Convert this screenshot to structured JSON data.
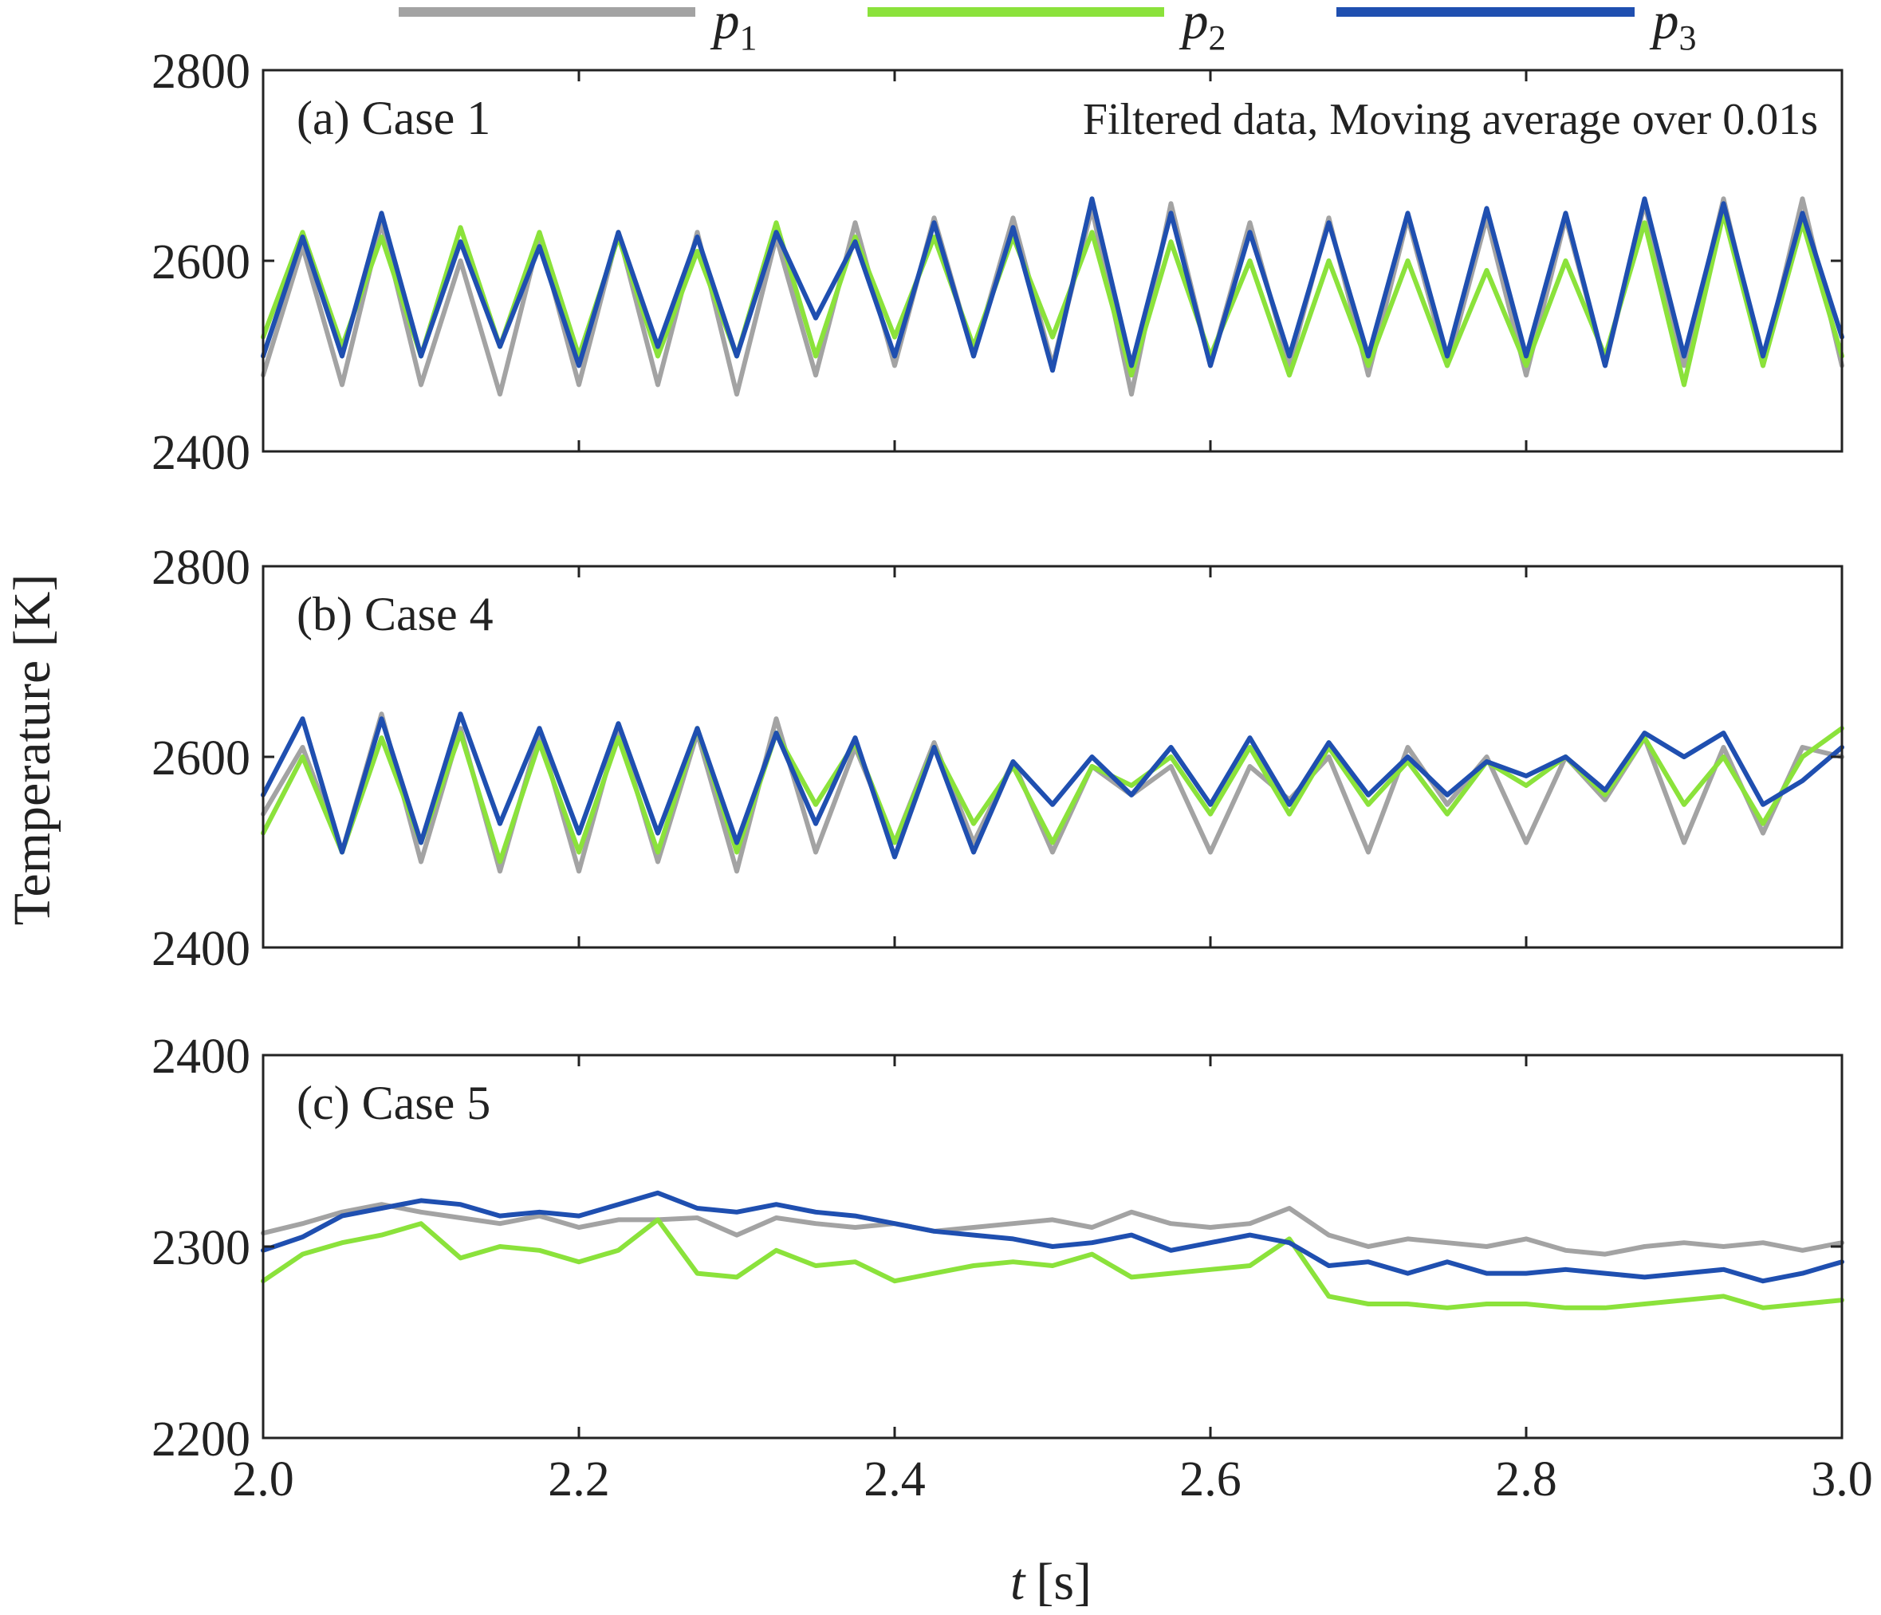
{
  "chart_data": {
    "type": "line",
    "title": "",
    "xlabel_var": "t",
    "xlabel_unit": "[s]",
    "ylabel": "Temperature [K]",
    "xlim": [
      2.0,
      3.0
    ],
    "x_ticks": [
      "2.0",
      "2.2",
      "2.4",
      "2.6",
      "2.8",
      "3.0"
    ],
    "annotation": "Filtered data, Moving average over 0.01s",
    "legend": [
      {
        "name": "p",
        "sub": "1",
        "color": "#a3a3a3"
      },
      {
        "name": "p",
        "sub": "2",
        "color": "#8be23b"
      },
      {
        "name": "p",
        "sub": "3",
        "color": "#1f4fb0"
      }
    ],
    "panels": [
      {
        "label": "(a) Case 1",
        "ylim": [
          2400,
          2800
        ],
        "y_ticks": [
          "2400",
          "2600",
          "2800"
        ],
        "series": [
          {
            "name": "p1",
            "x": [
              2.0,
              2.025,
              2.05,
              2.075,
              2.1,
              2.125,
              2.15,
              2.175,
              2.2,
              2.225,
              2.25,
              2.275,
              2.3,
              2.325,
              2.35,
              2.375,
              2.4,
              2.425,
              2.45,
              2.475,
              2.5,
              2.525,
              2.55,
              2.575,
              2.6,
              2.625,
              2.65,
              2.675,
              2.7,
              2.725,
              2.75,
              2.775,
              2.8,
              2.825,
              2.85,
              2.875,
              2.9,
              2.925,
              2.95,
              2.975,
              3.0
            ],
            "y": [
              2480,
              2615,
              2470,
              2640,
              2470,
              2600,
              2460,
              2625,
              2470,
              2630,
              2470,
              2630,
              2460,
              2625,
              2480,
              2640,
              2490,
              2645,
              2500,
              2645,
              2490,
              2655,
              2460,
              2660,
              2490,
              2640,
              2490,
              2645,
              2480,
              2645,
              2490,
              2645,
              2480,
              2645,
              2490,
              2660,
              2490,
              2665,
              2490,
              2665,
              2490
            ]
          },
          {
            "name": "p2",
            "x": [
              2.0,
              2.025,
              2.05,
              2.075,
              2.1,
              2.125,
              2.15,
              2.175,
              2.2,
              2.225,
              2.25,
              2.275,
              2.3,
              2.325,
              2.35,
              2.375,
              2.4,
              2.425,
              2.45,
              2.475,
              2.5,
              2.525,
              2.55,
              2.575,
              2.6,
              2.625,
              2.65,
              2.675,
              2.7,
              2.725,
              2.75,
              2.775,
              2.8,
              2.825,
              2.85,
              2.875,
              2.9,
              2.925,
              2.95,
              2.975,
              3.0
            ],
            "y": [
              2520,
              2630,
              2510,
              2625,
              2500,
              2635,
              2510,
              2630,
              2500,
              2625,
              2500,
              2610,
              2500,
              2640,
              2500,
              2625,
              2520,
              2625,
              2510,
              2625,
              2520,
              2630,
              2480,
              2620,
              2500,
              2600,
              2480,
              2600,
              2490,
              2600,
              2490,
              2590,
              2490,
              2600,
              2500,
              2640,
              2470,
              2650,
              2490,
              2640,
              2500
            ]
          },
          {
            "name": "p3",
            "x": [
              2.0,
              2.025,
              2.05,
              2.075,
              2.1,
              2.125,
              2.15,
              2.175,
              2.2,
              2.225,
              2.25,
              2.275,
              2.3,
              2.325,
              2.35,
              2.375,
              2.4,
              2.425,
              2.45,
              2.475,
              2.5,
              2.525,
              2.55,
              2.575,
              2.6,
              2.625,
              2.65,
              2.675,
              2.7,
              2.725,
              2.75,
              2.775,
              2.8,
              2.825,
              2.85,
              2.875,
              2.9,
              2.925,
              2.95,
              2.975,
              3.0
            ],
            "y": [
              2500,
              2625,
              2500,
              2650,
              2500,
              2620,
              2510,
              2615,
              2490,
              2630,
              2510,
              2625,
              2500,
              2630,
              2540,
              2620,
              2500,
              2640,
              2500,
              2635,
              2485,
              2665,
              2490,
              2650,
              2490,
              2630,
              2500,
              2640,
              2500,
              2650,
              2500,
              2655,
              2500,
              2650,
              2490,
              2665,
              2500,
              2660,
              2500,
              2650,
              2520
            ]
          }
        ]
      },
      {
        "label": "(b) Case 4",
        "ylim": [
          2400,
          2800
        ],
        "y_ticks": [
          "2400",
          "2600",
          "2800"
        ],
        "series": [
          {
            "name": "p1",
            "x": [
              2.0,
              2.025,
              2.05,
              2.075,
              2.1,
              2.125,
              2.15,
              2.175,
              2.2,
              2.225,
              2.25,
              2.275,
              2.3,
              2.325,
              2.35,
              2.375,
              2.4,
              2.425,
              2.45,
              2.475,
              2.5,
              2.525,
              2.55,
              2.575,
              2.6,
              2.625,
              2.65,
              2.675,
              2.7,
              2.725,
              2.75,
              2.775,
              2.8,
              2.825,
              2.85,
              2.875,
              2.9,
              2.925,
              2.95,
              2.975,
              3.0
            ],
            "y": [
              2540,
              2610,
              2500,
              2645,
              2490,
              2630,
              2480,
              2625,
              2480,
              2630,
              2490,
              2625,
              2480,
              2640,
              2500,
              2610,
              2510,
              2615,
              2510,
              2595,
              2500,
              2590,
              2560,
              2590,
              2500,
              2590,
              2555,
              2600,
              2500,
              2610,
              2550,
              2600,
              2510,
              2600,
              2555,
              2620,
              2510,
              2610,
              2520,
              2610,
              2600
            ]
          },
          {
            "name": "p2",
            "x": [
              2.0,
              2.025,
              2.05,
              2.075,
              2.1,
              2.125,
              2.15,
              2.175,
              2.2,
              2.225,
              2.25,
              2.275,
              2.3,
              2.325,
              2.35,
              2.375,
              2.4,
              2.425,
              2.45,
              2.475,
              2.5,
              2.525,
              2.55,
              2.575,
              2.6,
              2.625,
              2.65,
              2.675,
              2.7,
              2.725,
              2.75,
              2.775,
              2.8,
              2.825,
              2.85,
              2.875,
              2.9,
              2.925,
              2.95,
              2.975,
              3.0
            ],
            "y": [
              2520,
              2600,
              2500,
              2620,
              2510,
              2625,
              2490,
              2615,
              2500,
              2620,
              2500,
              2630,
              2500,
              2625,
              2550,
              2615,
              2510,
              2610,
              2530,
              2590,
              2510,
              2590,
              2570,
              2600,
              2540,
              2610,
              2540,
              2610,
              2550,
              2595,
              2540,
              2595,
              2570,
              2600,
              2560,
              2620,
              2550,
              2600,
              2530,
              2600,
              2630
            ]
          },
          {
            "name": "p3",
            "x": [
              2.0,
              2.025,
              2.05,
              2.075,
              2.1,
              2.125,
              2.15,
              2.175,
              2.2,
              2.225,
              2.25,
              2.275,
              2.3,
              2.325,
              2.35,
              2.375,
              2.4,
              2.425,
              2.45,
              2.475,
              2.5,
              2.525,
              2.55,
              2.575,
              2.6,
              2.625,
              2.65,
              2.675,
              2.7,
              2.725,
              2.75,
              2.775,
              2.8,
              2.825,
              2.85,
              2.875,
              2.9,
              2.925,
              2.95,
              2.975,
              3.0
            ],
            "y": [
              2560,
              2640,
              2500,
              2640,
              2510,
              2645,
              2530,
              2630,
              2520,
              2635,
              2520,
              2630,
              2510,
              2625,
              2530,
              2620,
              2495,
              2610,
              2500,
              2595,
              2550,
              2600,
              2560,
              2610,
              2550,
              2620,
              2550,
              2615,
              2560,
              2600,
              2560,
              2595,
              2580,
              2600,
              2565,
              2625,
              2600,
              2625,
              2550,
              2575,
              2610
            ]
          }
        ]
      },
      {
        "label": "(c) Case 5",
        "ylim": [
          2200,
          2400
        ],
        "y_ticks": [
          "2200",
          "2300",
          "2400"
        ],
        "series": [
          {
            "name": "p1",
            "x": [
              2.0,
              2.025,
              2.05,
              2.075,
              2.1,
              2.125,
              2.15,
              2.175,
              2.2,
              2.225,
              2.25,
              2.275,
              2.3,
              2.325,
              2.35,
              2.375,
              2.4,
              2.425,
              2.45,
              2.475,
              2.5,
              2.525,
              2.55,
              2.575,
              2.6,
              2.625,
              2.65,
              2.675,
              2.7,
              2.725,
              2.75,
              2.775,
              2.8,
              2.825,
              2.85,
              2.875,
              2.9,
              2.925,
              2.95,
              2.975,
              3.0
            ],
            "y": [
              2307,
              2312,
              2318,
              2322,
              2318,
              2315,
              2312,
              2316,
              2310,
              2314,
              2314,
              2315,
              2306,
              2315,
              2312,
              2310,
              2312,
              2308,
              2310,
              2312,
              2314,
              2310,
              2318,
              2312,
              2310,
              2312,
              2320,
              2306,
              2300,
              2304,
              2302,
              2300,
              2304,
              2298,
              2296,
              2300,
              2302,
              2300,
              2302,
              2298,
              2302
            ]
          },
          {
            "name": "p2",
            "x": [
              2.0,
              2.025,
              2.05,
              2.075,
              2.1,
              2.125,
              2.15,
              2.175,
              2.2,
              2.225,
              2.25,
              2.275,
              2.3,
              2.325,
              2.35,
              2.375,
              2.4,
              2.425,
              2.45,
              2.475,
              2.5,
              2.525,
              2.55,
              2.575,
              2.6,
              2.625,
              2.65,
              2.675,
              2.7,
              2.725,
              2.75,
              2.775,
              2.8,
              2.825,
              2.85,
              2.875,
              2.9,
              2.925,
              2.95,
              2.975,
              3.0
            ],
            "y": [
              2282,
              2296,
              2302,
              2306,
              2312,
              2294,
              2300,
              2298,
              2292,
              2298,
              2314,
              2286,
              2284,
              2298,
              2290,
              2292,
              2282,
              2286,
              2290,
              2292,
              2290,
              2296,
              2284,
              2286,
              2288,
              2290,
              2304,
              2274,
              2270,
              2270,
              2268,
              2270,
              2270,
              2268,
              2268,
              2270,
              2272,
              2274,
              2268,
              2270,
              2272
            ]
          },
          {
            "name": "p3",
            "x": [
              2.0,
              2.025,
              2.05,
              2.075,
              2.1,
              2.125,
              2.15,
              2.175,
              2.2,
              2.225,
              2.25,
              2.275,
              2.3,
              2.325,
              2.35,
              2.375,
              2.4,
              2.425,
              2.45,
              2.475,
              2.5,
              2.525,
              2.55,
              2.575,
              2.6,
              2.625,
              2.65,
              2.675,
              2.7,
              2.725,
              2.75,
              2.775,
              2.8,
              2.825,
              2.85,
              2.875,
              2.9,
              2.925,
              2.95,
              2.975,
              3.0
            ],
            "y": [
              2298,
              2305,
              2316,
              2320,
              2324,
              2322,
              2316,
              2318,
              2316,
              2322,
              2328,
              2320,
              2318,
              2322,
              2318,
              2316,
              2312,
              2308,
              2306,
              2304,
              2300,
              2302,
              2306,
              2298,
              2302,
              2306,
              2302,
              2290,
              2292,
              2286,
              2292,
              2286,
              2286,
              2288,
              2286,
              2284,
              2286,
              2288,
              2282,
              2286,
              2292
            ]
          }
        ]
      }
    ]
  }
}
